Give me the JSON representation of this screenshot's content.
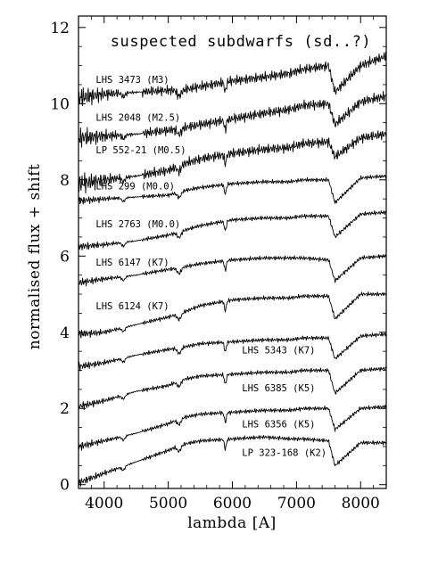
{
  "chart_data": {
    "type": "line",
    "title": "suspected subdwarfs (sd..?)",
    "xlabel": "lambda [A]",
    "ylabel": "normalised flux + shift",
    "xlim": [
      3600,
      8400
    ],
    "ylim": [
      -0.1,
      12.3
    ],
    "x_ticks": [
      4000,
      5000,
      6000,
      7000,
      8000
    ],
    "x_tick_labels": [
      "4000",
      "5000",
      "6000",
      "7000",
      "8000"
    ],
    "y_ticks": [
      0,
      2,
      4,
      6,
      8,
      10,
      12
    ],
    "y_tick_labels": [
      "0",
      "2",
      "4",
      "6",
      "8",
      "10",
      "12"
    ],
    "grid": false,
    "series": [
      {
        "name": "LHS 3473 (M3)",
        "offset": 10.0,
        "x": [
          3600,
          4000,
          4500,
          5000,
          5200,
          5500,
          6000,
          6500,
          6900,
          7100,
          7500,
          7600,
          8000,
          8400
        ],
        "y": [
          10.15,
          10.25,
          10.3,
          10.35,
          10.35,
          10.45,
          10.6,
          10.7,
          10.8,
          10.9,
          11.0,
          10.3,
          11.0,
          11.25
        ]
      },
      {
        "name": "LHS 2048 (M2.5)",
        "offset": 9.0,
        "x": [
          3600,
          4000,
          4500,
          5000,
          5200,
          5500,
          6000,
          6500,
          6900,
          7100,
          7500,
          7600,
          8000,
          8400
        ],
        "y": [
          9.1,
          9.15,
          9.2,
          9.3,
          9.35,
          9.45,
          9.6,
          9.75,
          9.85,
          9.95,
          10.0,
          9.45,
          10.05,
          10.2
        ]
      },
      {
        "name": "LP 552-21 (M0.5)",
        "offset": 7.9,
        "x": [
          3600,
          4000,
          4500,
          5000,
          5200,
          5500,
          6000,
          6500,
          6900,
          7100,
          7500,
          7600,
          8000,
          8400
        ],
        "y": [
          7.9,
          8.0,
          8.1,
          8.25,
          8.4,
          8.55,
          8.7,
          8.8,
          8.85,
          8.95,
          9.0,
          8.6,
          9.1,
          9.2
        ]
      },
      {
        "name": "LHS 299 (M0.0)",
        "offset": 7.5,
        "x": [
          3600,
          4000,
          4500,
          5000,
          5200,
          5500,
          6000,
          6500,
          6900,
          7100,
          7500,
          7600,
          8000,
          8400
        ],
        "y": [
          7.45,
          7.5,
          7.55,
          7.6,
          7.7,
          7.8,
          7.9,
          7.95,
          7.95,
          8.0,
          8.0,
          7.4,
          8.05,
          8.1
        ]
      },
      {
        "name": "LHS 2763 (M0.0)",
        "offset": 6.5,
        "x": [
          3600,
          4000,
          4500,
          5000,
          5200,
          5500,
          6000,
          6500,
          6900,
          7100,
          7500,
          7600,
          8000,
          8400
        ],
        "y": [
          6.25,
          6.3,
          6.4,
          6.55,
          6.65,
          6.8,
          6.95,
          7.0,
          7.0,
          7.05,
          7.05,
          6.5,
          7.1,
          7.15
        ]
      },
      {
        "name": "LHS 6147 (K7)",
        "offset": 5.5,
        "x": [
          3600,
          4000,
          4500,
          5000,
          5200,
          5500,
          6000,
          6500,
          6900,
          7100,
          7500,
          7600,
          8000,
          8400
        ],
        "y": [
          5.3,
          5.4,
          5.5,
          5.65,
          5.7,
          5.8,
          5.9,
          5.95,
          5.95,
          5.95,
          5.9,
          5.35,
          5.95,
          6.0
        ]
      },
      {
        "name": "LHS 6124 (K7)",
        "offset": 4.3,
        "x": [
          3600,
          4000,
          4500,
          5000,
          5200,
          5500,
          6000,
          6500,
          6900,
          7100,
          7500,
          7600,
          8000,
          8400
        ],
        "y": [
          3.95,
          4.0,
          4.2,
          4.4,
          4.5,
          4.7,
          4.85,
          4.9,
          4.9,
          4.95,
          4.95,
          4.35,
          5.0,
          5.0
        ]
      },
      {
        "name": "LHS 5343 (K7)",
        "offset": 3.3,
        "x": [
          3600,
          4000,
          4500,
          5000,
          5200,
          5500,
          6000,
          6500,
          6900,
          7100,
          7500,
          7600,
          8000,
          8400
        ],
        "y": [
          3.1,
          3.2,
          3.4,
          3.55,
          3.6,
          3.7,
          3.75,
          3.8,
          3.8,
          3.85,
          3.85,
          3.3,
          3.9,
          3.95
        ]
      },
      {
        "name": "LHS 6385 (K5)",
        "offset": 2.5,
        "x": [
          3600,
          4000,
          4500,
          5000,
          5200,
          5500,
          6000,
          6500,
          6900,
          7100,
          7500,
          7600,
          8000,
          8400
        ],
        "y": [
          2.05,
          2.2,
          2.45,
          2.6,
          2.75,
          2.85,
          2.9,
          2.95,
          2.95,
          3.0,
          3.0,
          2.4,
          3.0,
          3.05
        ]
      },
      {
        "name": "LHS 6356 (K5)",
        "offset": 1.5,
        "x": [
          3600,
          4000,
          4500,
          5000,
          5200,
          5500,
          6000,
          6500,
          6900,
          7100,
          7500,
          7600,
          8000,
          8400
        ],
        "y": [
          1.0,
          1.15,
          1.35,
          1.6,
          1.75,
          1.85,
          1.9,
          1.95,
          1.95,
          2.0,
          2.0,
          1.45,
          2.0,
          2.05
        ]
      },
      {
        "name": "LP 323-168 (K2)",
        "offset": 0.5,
        "x": [
          3600,
          4000,
          4500,
          5000,
          5200,
          5500,
          6000,
          6500,
          6900,
          7100,
          7500,
          7600,
          8000,
          8400
        ],
        "y": [
          0.05,
          0.3,
          0.6,
          0.9,
          1.05,
          1.15,
          1.2,
          1.25,
          1.2,
          1.2,
          1.15,
          0.5,
          1.1,
          1.1
        ]
      }
    ],
    "label_positions_data": [
      {
        "x": 3870,
        "y": 10.55
      },
      {
        "x": 3870,
        "y": 9.55
      },
      {
        "x": 3870,
        "y": 8.7
      },
      {
        "x": 3870,
        "y": 7.75
      },
      {
        "x": 3870,
        "y": 6.75
      },
      {
        "x": 3870,
        "y": 5.75
      },
      {
        "x": 3870,
        "y": 4.6
      },
      {
        "x": 6150,
        "y": 3.45
      },
      {
        "x": 6150,
        "y": 2.45
      },
      {
        "x": 6150,
        "y": 1.5
      },
      {
        "x": 6150,
        "y": 0.75
      }
    ]
  }
}
